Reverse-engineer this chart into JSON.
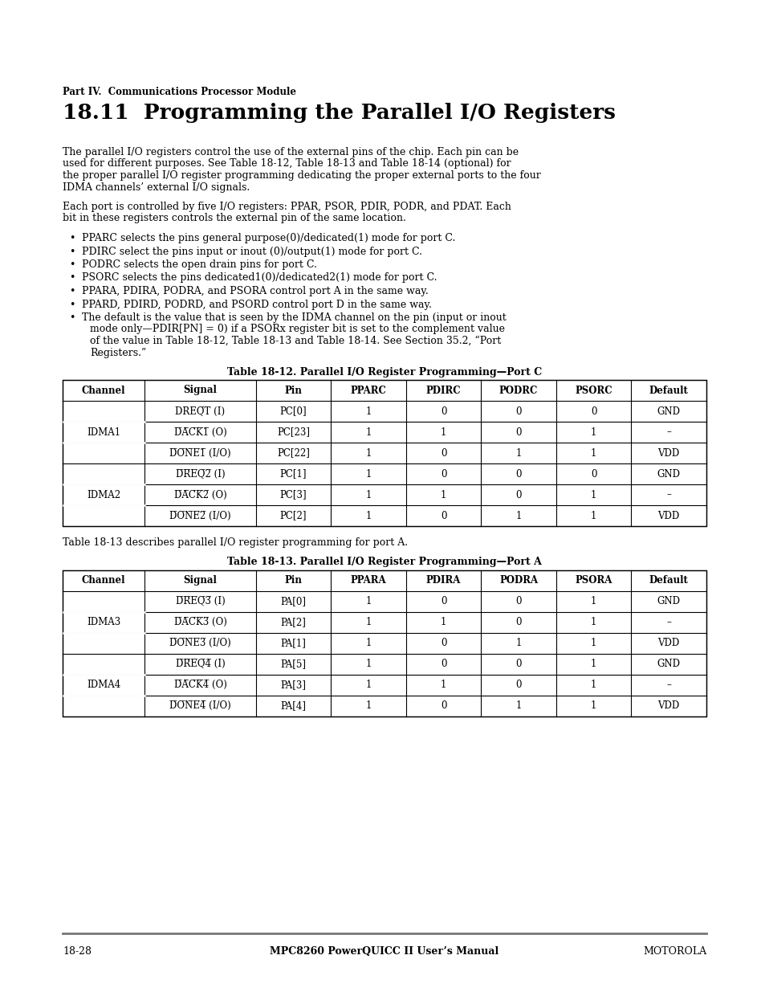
{
  "page_bg": "#ffffff",
  "header_text": "Part IV.  Communications Processor Module",
  "section_title": "18.11  Programming the Parallel I/O Registers",
  "para1_lines": [
    "The parallel I/O registers control the use of the external pins of the chip. Each pin can be",
    "used for different purposes. See Table 18-12, Table 18-13 and Table 18-14 (optional) for",
    "the proper parallel I/O register programming dedicating the proper external ports to the four",
    "IDMA channels’ external I/O signals."
  ],
  "para2_lines": [
    "Each port is controlled by five I/O registers: PPAR, PSOR, PDIR, PODR, and PDAT. Each",
    "bit in these registers controls the external pin of the same location."
  ],
  "bullets": [
    [
      "PPARC selects the pins general purpose(0)/dedicated(1) mode for port C."
    ],
    [
      "PDIRC select the pins input or inout (0)/output(1) mode for port C."
    ],
    [
      "PODRC selects the open drain pins for port C."
    ],
    [
      "PSORC selects the pins dedicated1(0)/dedicated2(1) mode for port C."
    ],
    [
      "PPARA, PDIRA, PODRA, and PSORA control port A in the same way."
    ],
    [
      "PPARD, PDIRD, PODRD, and PSORD control port D in the same way."
    ],
    [
      "The default is the value that is seen by the IDMA channel on the pin (input or inout",
      "mode only—PDIR[PN] = 0) if a PSORx register bit is set to the complement value",
      "of the value in Table 18-12, Table 18-13 and Table 18-14. See Section 35.2, “Port",
      "Registers.”"
    ]
  ],
  "table1_title": "Table 18-12. Parallel I/O Register Programming—Port C",
  "table1_headers": [
    "Channel",
    "Signal",
    "Pin",
    "PPARC",
    "PDIRC",
    "PODRC",
    "PSORC",
    "Default"
  ],
  "table1_rows": [
    [
      "IDMA1",
      "DREQ̅T̅ (I)",
      "PC[0]",
      "1",
      "0",
      "0",
      "0",
      "GND"
    ],
    [
      "",
      "D̅A̅C̅K̅1̅ (O)",
      "PC[23]",
      "1",
      "1",
      "0",
      "1",
      "–"
    ],
    [
      "",
      "D̅O̅N̅E̅1̅ (I/O)",
      "PC[22]",
      "1",
      "0",
      "1",
      "1",
      "VDD"
    ],
    [
      "IDMA2",
      "D̅R̅E̅Q̅2̅ (I)",
      "PC[1]",
      "1",
      "0",
      "0",
      "0",
      "GND"
    ],
    [
      "",
      "D̅A̅C̅K̅2̅ (O)",
      "PC[3]",
      "1",
      "1",
      "0",
      "1",
      "–"
    ],
    [
      "",
      "D̅O̅N̅E̅2̅ (I/O)",
      "PC[2]",
      "1",
      "0",
      "1",
      "1",
      "VDD"
    ]
  ],
  "between_tables_text": "Table 18-13 describes parallel I/O register programming for port A.",
  "table2_title": "Table 18-13. Parallel I/O Register Programming—Port A",
  "table2_headers": [
    "Channel",
    "Signal",
    "Pin",
    "PPARA",
    "PDIRA",
    "PODRA",
    "PSORA",
    "Default"
  ],
  "table2_rows": [
    [
      "IDMA3",
      "D̅R̅E̅Q̅3̅ (I)",
      "PA[0]",
      "1",
      "0",
      "0",
      "1",
      "GND"
    ],
    [
      "",
      "D̅A̅C̅K̅3̅ (O)",
      "PA[2]",
      "1",
      "1",
      "0",
      "1",
      "–"
    ],
    [
      "",
      "D̅O̅N̅E̅3̅ (I/O)",
      "PA[1]",
      "1",
      "0",
      "1",
      "1",
      "VDD"
    ],
    [
      "IDMA4",
      "D̅R̅E̅Q̅4̅ (I)",
      "PA[5]",
      "1",
      "0",
      "0",
      "1",
      "GND"
    ],
    [
      "",
      "D̅A̅C̅K̅4̅ (O)",
      "PA[3]",
      "1",
      "1",
      "0",
      "1",
      "–"
    ],
    [
      "",
      "D̅O̅N̅E̅4̅ (I/O)",
      "PA[4]",
      "1",
      "0",
      "1",
      "1",
      "VDD"
    ]
  ],
  "footer_left": "18-28",
  "footer_center": "MPC8260 PowerQUICC II User’s Manual",
  "footer_right": "MOTOROLA"
}
